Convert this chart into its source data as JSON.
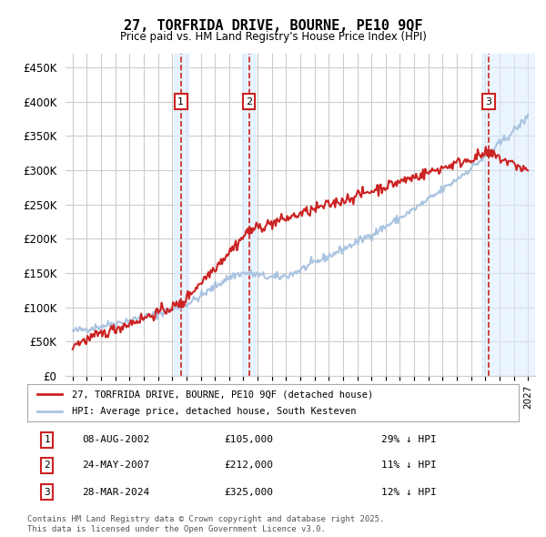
{
  "title": "27, TORFRIDA DRIVE, BOURNE, PE10 9QF",
  "subtitle": "Price paid vs. HM Land Registry's House Price Index (HPI)",
  "ylabel": "",
  "background_color": "#ffffff",
  "plot_bg_color": "#ffffff",
  "grid_color": "#cccccc",
  "ylim": [
    0,
    470000
  ],
  "yticks": [
    0,
    50000,
    100000,
    150000,
    200000,
    250000,
    300000,
    350000,
    400000,
    450000
  ],
  "ytick_labels": [
    "£0",
    "£50K",
    "£100K",
    "£150K",
    "£200K",
    "£250K",
    "£300K",
    "£350K",
    "£400K",
    "£450K"
  ],
  "xlim_start": 1994.5,
  "xlim_end": 2027.5,
  "sale_dates": [
    2002.604,
    2007.387,
    2024.237
  ],
  "sale_prices": [
    105000,
    212000,
    325000
  ],
  "sale_labels": [
    "1",
    "2",
    "3"
  ],
  "legend_entries": [
    "27, TORFRIDA DRIVE, BOURNE, PE10 9QF (detached house)",
    "HPI: Average price, detached house, South Kesteven"
  ],
  "table_entries": [
    {
      "label": "1",
      "date": "08-AUG-2002",
      "price": "£105,000",
      "hpi": "29% ↓ HPI"
    },
    {
      "label": "2",
      "date": "24-MAY-2007",
      "price": "£212,000",
      "hpi": "11% ↓ HPI"
    },
    {
      "label": "3",
      "date": "28-MAR-2024",
      "price": "£325,000",
      "hpi": "12% ↓ HPI"
    }
  ],
  "footer": "Contains HM Land Registry data © Crown copyright and database right 2025.\nThis data is licensed under the Open Government Licence v3.0.",
  "hpi_color": "#aac4e0",
  "price_color": "#cc2222",
  "marker_color": "#cc2222",
  "shaded_region_color": "#ddeeff",
  "hatch_color": "#aac4e0"
}
